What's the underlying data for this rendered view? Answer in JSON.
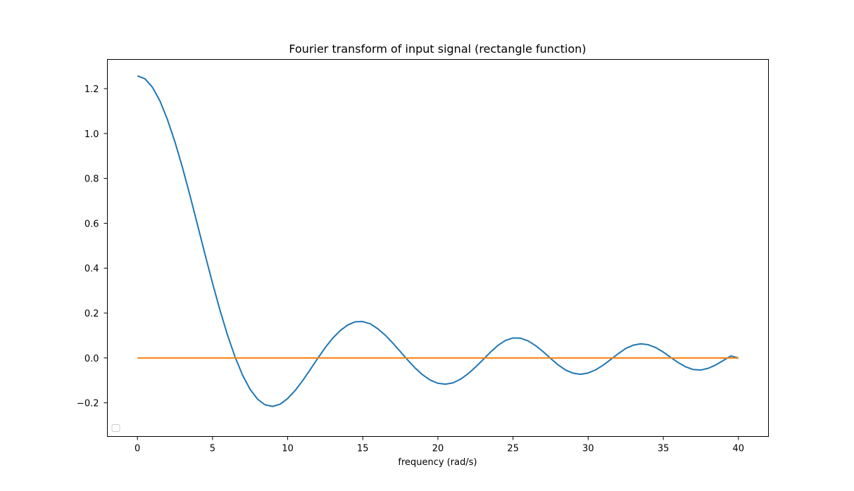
{
  "chart_data": {
    "type": "line",
    "title": "Fourier transform of input signal (rectangle function)",
    "xlabel": "frequency (rad/s)",
    "ylabel": "",
    "xlim": [
      -2,
      42
    ],
    "ylim": [
      -0.35,
      1.33
    ],
    "xticks": [
      0,
      5,
      10,
      15,
      20,
      25,
      30,
      35,
      40
    ],
    "yticks": [
      -0.2,
      0.0,
      0.2,
      0.4,
      0.6,
      0.8,
      1.0,
      1.2
    ],
    "ytick_labels": [
      "−0.2",
      "0.0",
      "0.2",
      "0.4",
      "0.6",
      "0.8",
      "1.0",
      "1.2"
    ],
    "grid": false,
    "legend": {
      "placement": "lower-left",
      "entries": []
    },
    "series": [
      {
        "color": "#1f77b4",
        "x": [
          0,
          0.5,
          1,
          1.5,
          2,
          2.5,
          3,
          3.5,
          4,
          4.5,
          5,
          5.5,
          6,
          6.5,
          7,
          7.5,
          8,
          8.5,
          9,
          9.5,
          10,
          10.5,
          11,
          11.5,
          12,
          12.5,
          13,
          13.5,
          14,
          14.5,
          15,
          15.5,
          16,
          16.5,
          17,
          17.5,
          18,
          18.5,
          19,
          19.5,
          20,
          20.5,
          21,
          21.5,
          22,
          22.5,
          23,
          23.5,
          24,
          24.5,
          25,
          25.5,
          26,
          26.5,
          27,
          27.5,
          28,
          28.5,
          29,
          29.5,
          30,
          30.5,
          31,
          31.5,
          32,
          32.5,
          33,
          33.5,
          34,
          34.5,
          35,
          35.5,
          36,
          36.5,
          37,
          37.5,
          38,
          38.5,
          39,
          39.5,
          40
        ],
        "y": [
          1.257,
          1.244,
          1.206,
          1.145,
          1.062,
          0.962,
          0.848,
          0.723,
          0.593,
          0.461,
          0.333,
          0.212,
          0.101,
          0.004,
          -0.077,
          -0.14,
          -0.184,
          -0.209,
          -0.216,
          -0.206,
          -0.181,
          -0.145,
          -0.101,
          -0.052,
          -0.002,
          0.046,
          0.088,
          0.122,
          0.147,
          0.161,
          0.162,
          0.152,
          0.13,
          0.101,
          0.066,
          0.028,
          -0.01,
          -0.046,
          -0.076,
          -0.099,
          -0.113,
          -0.117,
          -0.111,
          -0.095,
          -0.071,
          -0.041,
          -0.008,
          0.026,
          0.056,
          0.078,
          0.089,
          0.088,
          0.076,
          0.055,
          0.028,
          -0.002,
          -0.031,
          -0.054,
          -0.068,
          -0.073,
          -0.067,
          -0.053,
          -0.032,
          -0.007,
          0.019,
          0.042,
          0.057,
          0.063,
          0.059,
          0.046,
          0.026,
          0.002,
          -0.021,
          -0.04,
          -0.052,
          -0.054,
          -0.046,
          -0.031,
          -0.011,
          0.009,
          0.0
        ]
      },
      {
        "color": "#ff7f0e",
        "x": [
          0,
          40
        ],
        "y": [
          0,
          0
        ]
      }
    ]
  }
}
